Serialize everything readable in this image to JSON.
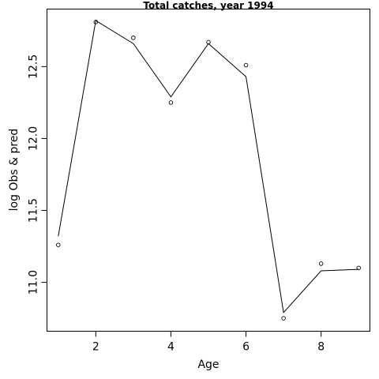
{
  "chart_data": {
    "type": "line",
    "title": "Total catches, year 1994",
    "xlabel": "Age",
    "ylabel": "log Obs & pred",
    "xlim": [
      0.7,
      9.3
    ],
    "ylim": [
      10.66,
      12.9
    ],
    "x_ticks": [
      2,
      4,
      6,
      8
    ],
    "x_tick_labels": [
      "2",
      "4",
      "6",
      "8"
    ],
    "y_ticks": [
      11.0,
      11.5,
      12.0,
      12.5
    ],
    "y_tick_labels": [
      "11.0",
      "11.5",
      "12.0",
      "12.5"
    ],
    "grid": false,
    "series": [
      {
        "style": "points",
        "marker": "open-circle",
        "x": [
          1,
          2,
          3,
          4,
          5,
          6,
          7,
          8,
          9
        ],
        "y": [
          11.26,
          12.81,
          12.7,
          12.25,
          12.67,
          12.51,
          10.75,
          11.13,
          11.1
        ]
      },
      {
        "style": "line",
        "x": [
          1,
          2,
          3,
          4,
          5,
          6,
          7,
          8,
          9
        ],
        "y": [
          11.32,
          12.82,
          12.66,
          12.29,
          12.66,
          12.43,
          10.79,
          11.08,
          11.09
        ]
      }
    ]
  }
}
